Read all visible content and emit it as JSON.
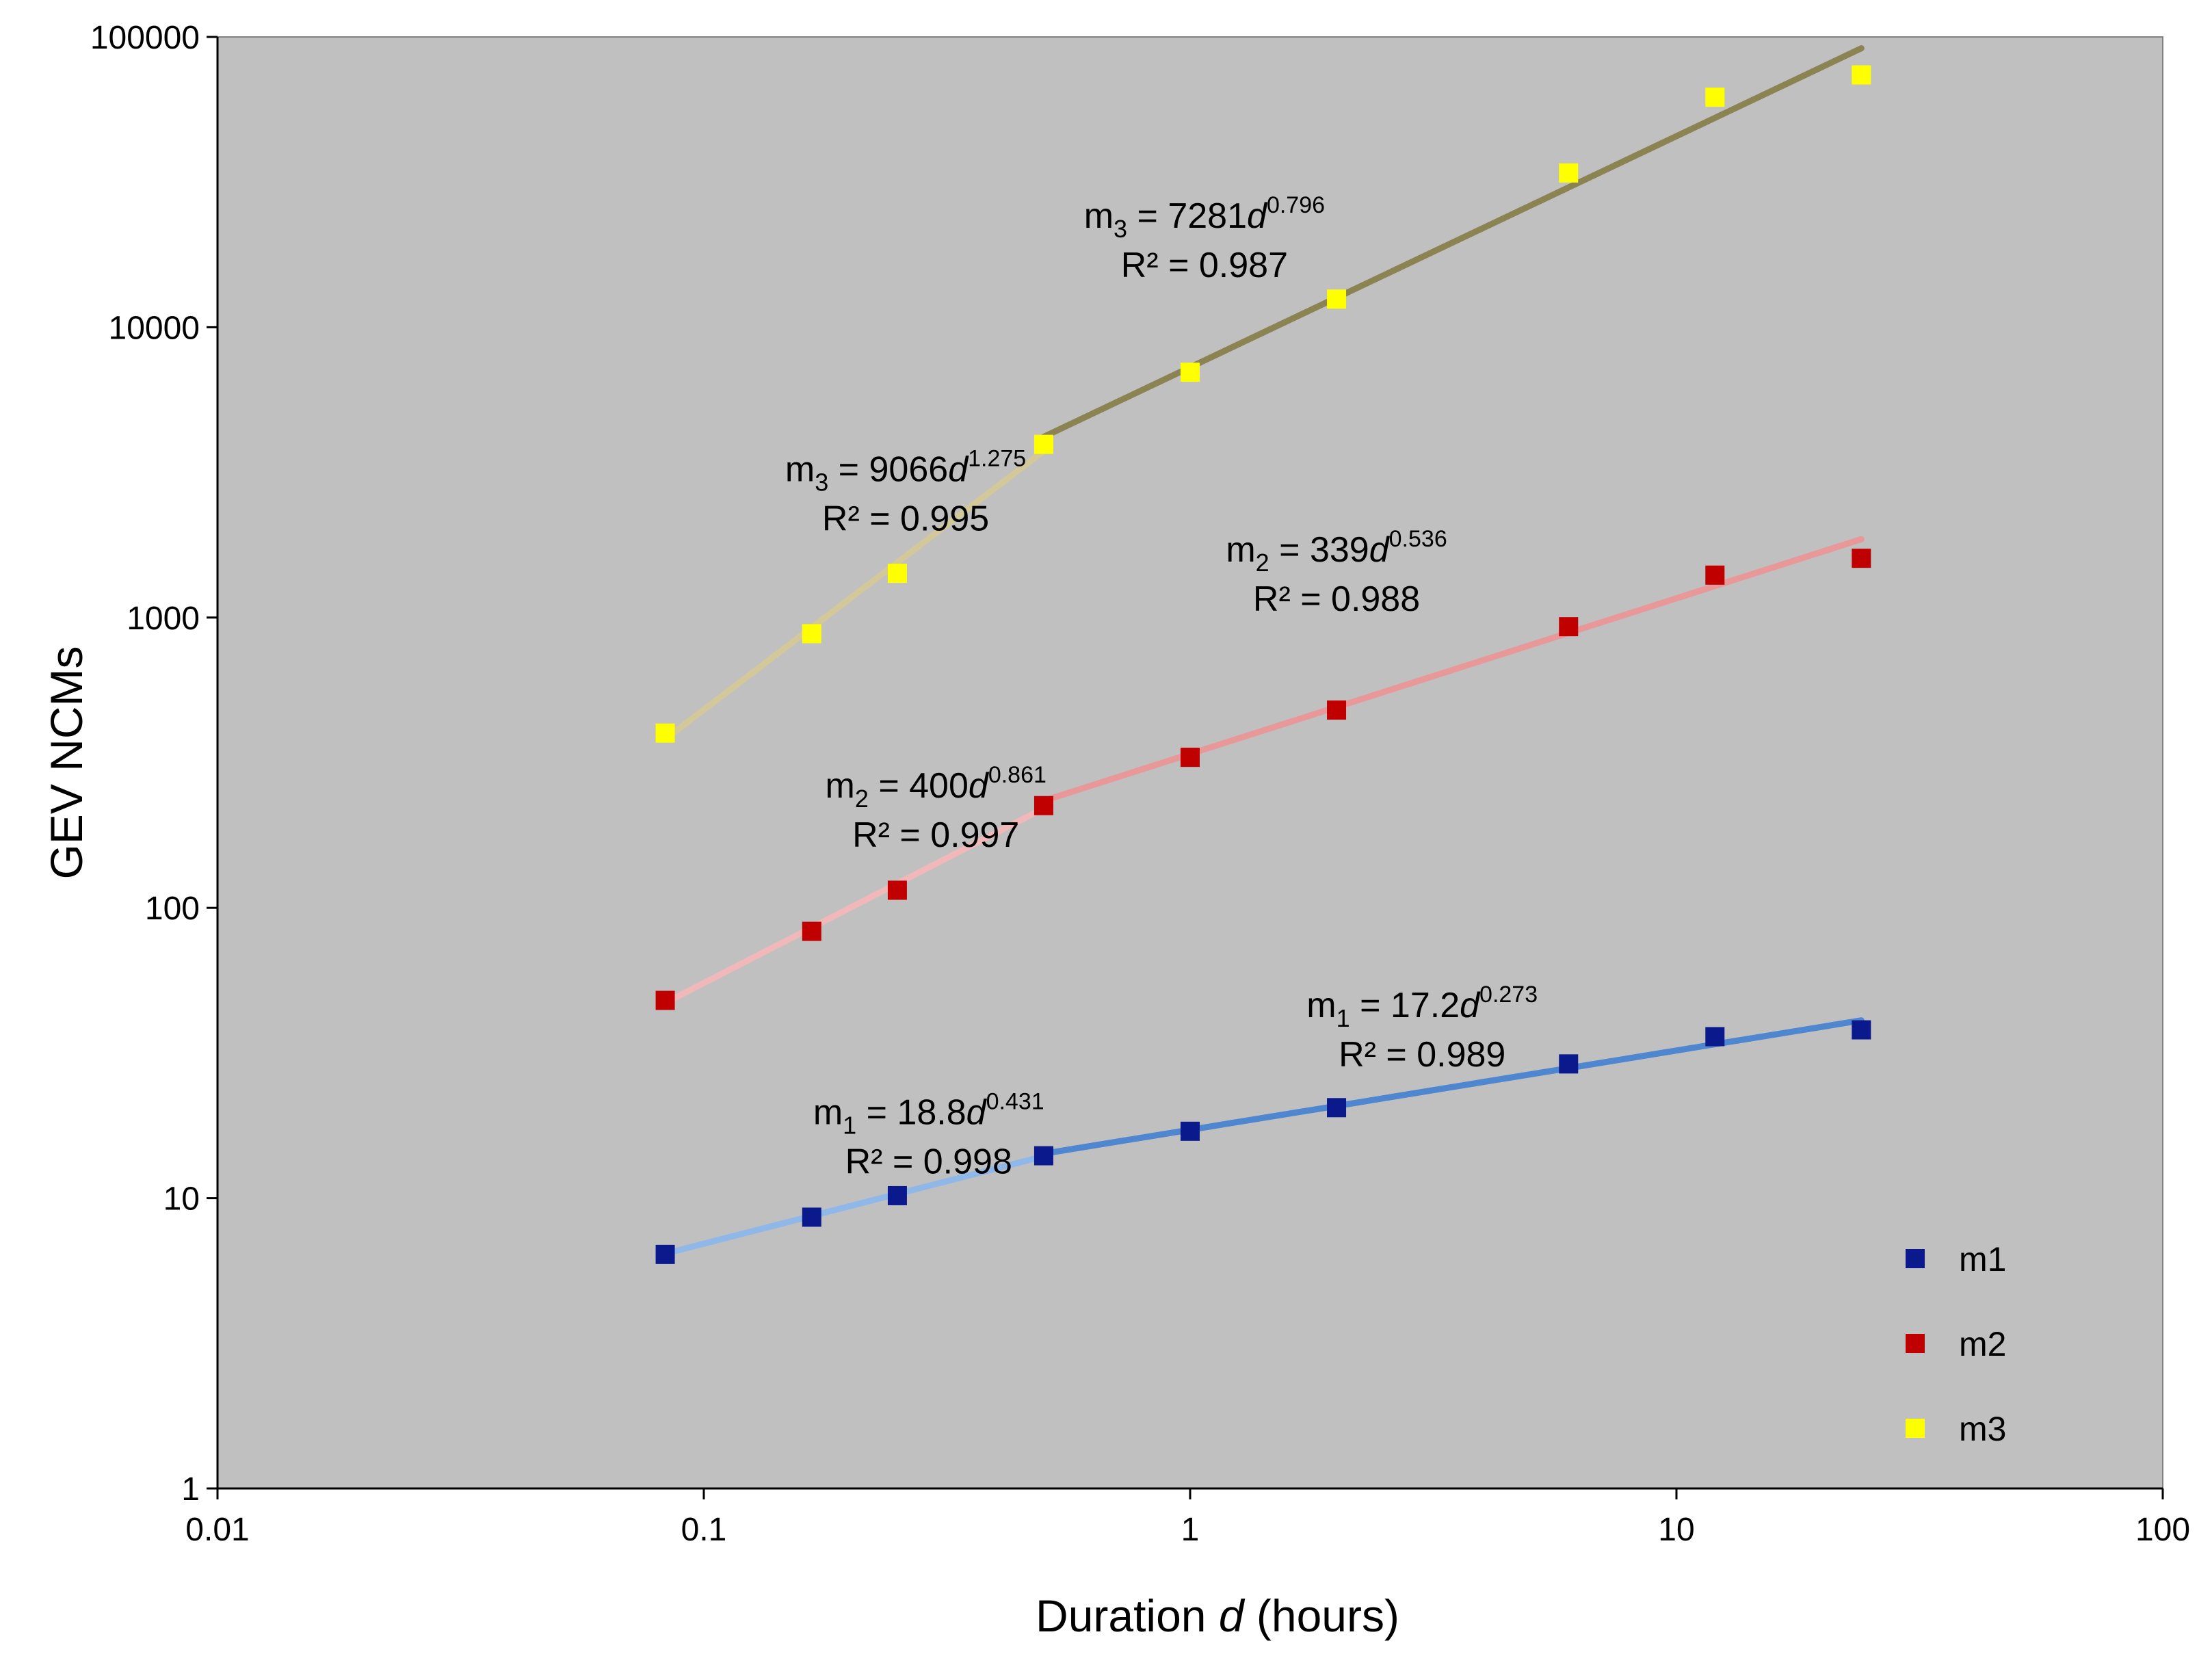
{
  "chart_data": {
    "type": "scatter",
    "x_scale": "log",
    "y_scale": "log",
    "xlabel_prefix": "Duration ",
    "xlabel_var": "d",
    "xlabel_suffix": " (hours)",
    "ylabel": "GEV NCMs",
    "xlim": [
      0.01,
      100
    ],
    "ylim": [
      1,
      100000
    ],
    "x_ticks": [
      0.01,
      0.1,
      1,
      10,
      100
    ],
    "x_tick_labels": [
      "0.01",
      "0.1",
      "1",
      "10",
      "100"
    ],
    "y_ticks": [
      1,
      10,
      100,
      1000,
      10000,
      100000
    ],
    "y_tick_labels": [
      "1",
      "10",
      "100",
      "1000",
      "10000",
      "100000"
    ],
    "x": [
      0.0833,
      0.1667,
      0.25,
      0.5,
      1,
      2,
      6,
      12,
      24
    ],
    "plot_background": "#c0c0c0",
    "series": [
      {
        "name": "m1",
        "color": "#0a1a8c",
        "values": [
          6.4,
          8.6,
          10.2,
          14.0,
          17.0,
          20.5,
          29.0,
          36.0,
          38.0
        ],
        "fits": [
          {
            "coef": 18.8,
            "exp": 0.431,
            "x_range": [
              0.0833,
              0.5
            ],
            "color": "#8fb8e8",
            "r2_text": "R² = 0.998",
            "label_sym": "m",
            "label_sub": "1",
            "label_mid": " = 18.8",
            "label_var": "d",
            "label_exp": "0.431",
            "label_pos": [
              0.29,
              18
            ]
          },
          {
            "coef": 17.2,
            "exp": 0.273,
            "x_range": [
              0.5,
              24
            ],
            "color": "#4f86d0",
            "r2_text": "R² = 0.989",
            "label_sym": "m",
            "label_sub": "1",
            "label_mid": " = 17.2",
            "label_var": "d",
            "label_exp": "0.273",
            "label_pos": [
              3.0,
              42
            ]
          }
        ]
      },
      {
        "name": "m2",
        "color": "#c00000",
        "values": [
          48,
          83,
          115,
          225,
          330,
          480,
          930,
          1400,
          1600
        ],
        "fits": [
          {
            "coef": 400,
            "exp": 0.861,
            "x_range": [
              0.0833,
              0.5
            ],
            "color": "#f0b8b8",
            "r2_text": "R² = 0.997",
            "label_sym": "m",
            "label_sub": "2",
            "label_mid": " = 400",
            "label_var": "d",
            "label_exp": "0.861",
            "label_pos": [
              0.3,
              240
            ]
          },
          {
            "coef": 339,
            "exp": 0.536,
            "x_range": [
              0.5,
              24
            ],
            "color": "#e89898",
            "r2_text": "R² = 0.988",
            "label_sym": "m",
            "label_sub": "2",
            "label_mid": " = 339",
            "label_var": "d",
            "label_exp": "0.536",
            "label_pos": [
              2.0,
              1560
            ]
          }
        ]
      },
      {
        "name": "m3",
        "color": "#ffff00",
        "values": [
          400,
          880,
          1420,
          3950,
          7000,
          12500,
          34000,
          62000,
          74000
        ],
        "fits": [
          {
            "coef": 9066,
            "exp": 1.275,
            "x_range": [
              0.0833,
              0.5
            ],
            "color": "#d2c89a",
            "r2_text": "R² = 0.995",
            "label_sym": "m",
            "label_sub": "3",
            "label_mid": " = 9066",
            "label_var": "d",
            "label_exp": "1.275",
            "label_pos": [
              0.26,
              2950
            ]
          },
          {
            "coef": 7281,
            "exp": 0.796,
            "x_range": [
              0.5,
              24
            ],
            "color": "#8b8351",
            "r2_text": "R² = 0.987",
            "label_sym": "m",
            "label_sub": "3",
            "label_mid": " = 7281",
            "label_var": "d",
            "label_exp": "0.796",
            "label_pos": [
              1.07,
              22000
            ]
          }
        ]
      }
    ],
    "legend": {
      "position": "bottom-right",
      "entries": [
        "m1",
        "m2",
        "m3"
      ]
    }
  }
}
